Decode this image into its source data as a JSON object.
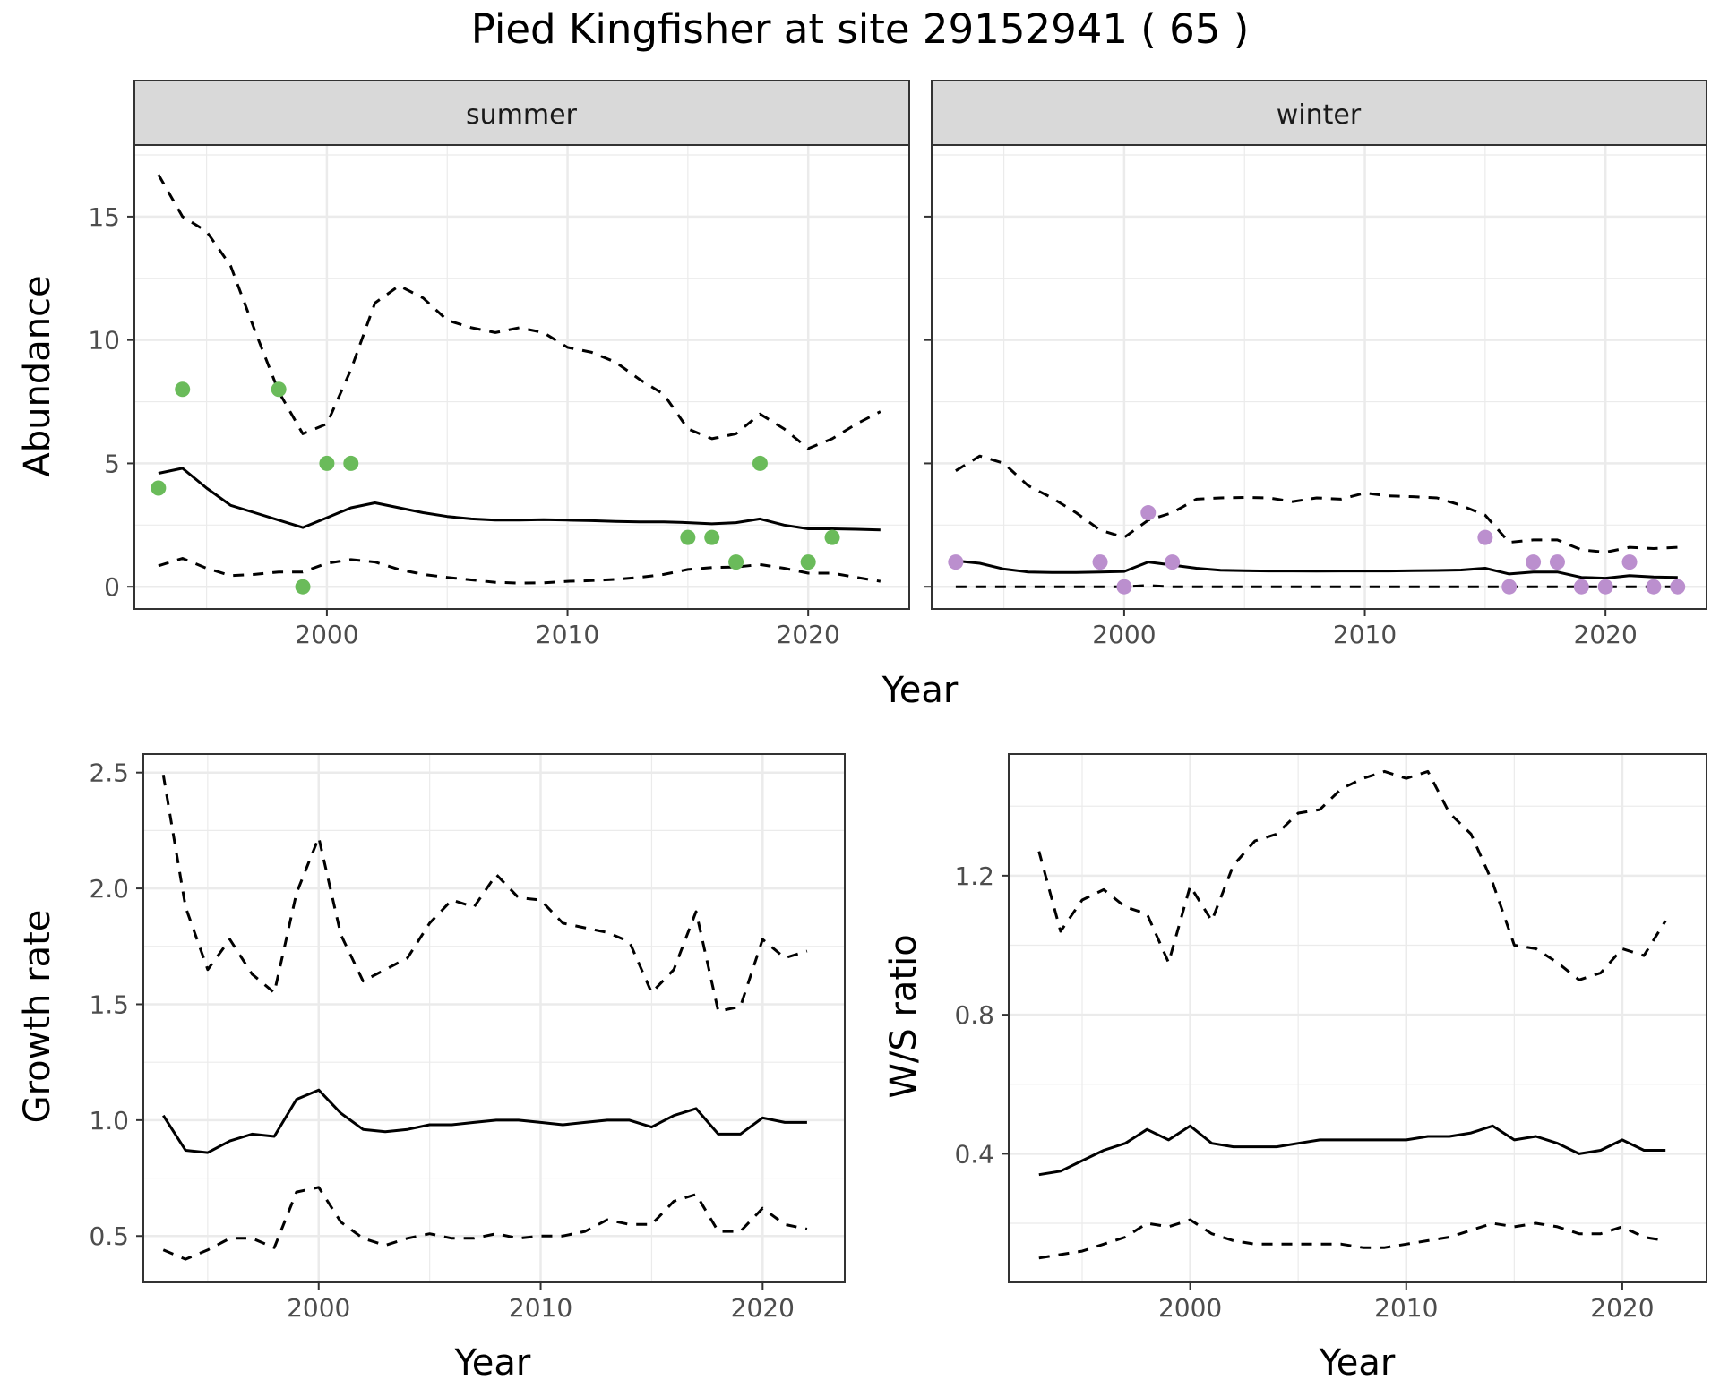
{
  "title": "Pied Kingfisher at site 29152941 ( 65 )",
  "colors": {
    "summer_points": "#6abb5a",
    "winter_points": "#bb8fce",
    "line": "#000000",
    "strip_fill": "#d9d9d9",
    "grid_major": "#ebebeb",
    "panel_border": "#333333"
  },
  "chart_data": [
    {
      "type": "line",
      "facet": "summer",
      "xlabel": "Year",
      "ylabel": "Abundance",
      "xlim": [
        1992,
        2024.2
      ],
      "ylim": [
        -0.9,
        17.9
      ],
      "xticks": [
        2000,
        2010,
        2020
      ],
      "yticks": [
        0,
        5,
        10,
        15
      ],
      "grid": true,
      "x": [
        1993,
        1994,
        1995,
        1996,
        1997,
        1998,
        1999,
        2000,
        2001,
        2002,
        2003,
        2004,
        2005,
        2006,
        2007,
        2008,
        2009,
        2010,
        2011,
        2012,
        2013,
        2014,
        2015,
        2016,
        2017,
        2018,
        2019,
        2020,
        2021,
        2022,
        2023
      ],
      "series": [
        {
          "role": "upper",
          "style": "dashed",
          "values": [
            16.7,
            15.0,
            14.4,
            13.0,
            10.4,
            7.9,
            6.2,
            6.6,
            8.8,
            11.5,
            12.2,
            11.7,
            10.8,
            10.5,
            10.3,
            10.5,
            10.3,
            9.7,
            9.5,
            9.1,
            8.4,
            7.8,
            6.4,
            6.0,
            6.2,
            7.0,
            6.4,
            5.6,
            6.0,
            6.6,
            7.1
          ]
        },
        {
          "role": "mean",
          "style": "solid",
          "values": [
            4.6,
            4.8,
            4.0,
            3.3,
            3.0,
            2.7,
            2.4,
            2.8,
            3.2,
            3.4,
            3.2,
            3.0,
            2.85,
            2.75,
            2.7,
            2.7,
            2.72,
            2.7,
            2.68,
            2.65,
            2.63,
            2.63,
            2.6,
            2.55,
            2.6,
            2.75,
            2.5,
            2.35,
            2.35,
            2.33,
            2.3
          ]
        },
        {
          "role": "lower",
          "style": "dashed",
          "values": [
            0.85,
            1.15,
            0.75,
            0.45,
            0.5,
            0.6,
            0.6,
            0.95,
            1.1,
            1.0,
            0.7,
            0.5,
            0.38,
            0.28,
            0.18,
            0.15,
            0.16,
            0.22,
            0.25,
            0.3,
            0.38,
            0.5,
            0.7,
            0.78,
            0.8,
            0.9,
            0.75,
            0.55,
            0.55,
            0.38,
            0.22
          ]
        }
      ],
      "points": [
        {
          "x": 1993,
          "y": 4
        },
        {
          "x": 1994,
          "y": 8
        },
        {
          "x": 1998,
          "y": 8
        },
        {
          "x": 1999,
          "y": 0
        },
        {
          "x": 2000,
          "y": 5
        },
        {
          "x": 2001,
          "y": 5
        },
        {
          "x": 2015,
          "y": 2
        },
        {
          "x": 2016,
          "y": 2
        },
        {
          "x": 2017,
          "y": 1
        },
        {
          "x": 2018,
          "y": 5
        },
        {
          "x": 2020,
          "y": 1
        },
        {
          "x": 2021,
          "y": 2
        }
      ]
    },
    {
      "type": "line",
      "facet": "winter",
      "xlabel": "Year",
      "ylabel": "Abundance",
      "xlim": [
        1992,
        2024.2
      ],
      "ylim": [
        -0.9,
        17.9
      ],
      "xticks": [
        2000,
        2010,
        2020
      ],
      "yticks": [
        0,
        5,
        10,
        15
      ],
      "grid": true,
      "x": [
        1993,
        1994,
        1995,
        1996,
        1997,
        1998,
        1999,
        2000,
        2001,
        2002,
        2003,
        2004,
        2005,
        2006,
        2007,
        2008,
        2009,
        2010,
        2011,
        2012,
        2013,
        2014,
        2015,
        2016,
        2017,
        2018,
        2019,
        2020,
        2021,
        2022,
        2023
      ],
      "series": [
        {
          "role": "upper",
          "style": "dashed",
          "values": [
            4.7,
            5.3,
            5.0,
            4.1,
            3.6,
            3.0,
            2.3,
            2.0,
            2.7,
            3.0,
            3.55,
            3.6,
            3.62,
            3.6,
            3.45,
            3.6,
            3.55,
            3.8,
            3.68,
            3.65,
            3.6,
            3.3,
            2.9,
            1.8,
            1.9,
            1.9,
            1.5,
            1.4,
            1.6,
            1.55,
            1.6
          ]
        },
        {
          "role": "mean",
          "style": "solid",
          "values": [
            1.05,
            0.95,
            0.72,
            0.6,
            0.58,
            0.58,
            0.6,
            0.62,
            1.0,
            0.88,
            0.75,
            0.67,
            0.65,
            0.64,
            0.64,
            0.63,
            0.64,
            0.64,
            0.64,
            0.65,
            0.66,
            0.68,
            0.75,
            0.52,
            0.6,
            0.6,
            0.38,
            0.35,
            0.45,
            0.4,
            0.38
          ]
        },
        {
          "role": "lower",
          "style": "dashed",
          "values": [
            0,
            0,
            0,
            0,
            0,
            0,
            0,
            0,
            0.05,
            0,
            0,
            0,
            0,
            0,
            0,
            0,
            0,
            0,
            0,
            0,
            0,
            0,
            0,
            0,
            0,
            0,
            0,
            0,
            0,
            0,
            0
          ]
        }
      ],
      "points": [
        {
          "x": 1993,
          "y": 1
        },
        {
          "x": 1999,
          "y": 1
        },
        {
          "x": 2000,
          "y": 0
        },
        {
          "x": 2001,
          "y": 3
        },
        {
          "x": 2002,
          "y": 1
        },
        {
          "x": 2015,
          "y": 2
        },
        {
          "x": 2016,
          "y": 0
        },
        {
          "x": 2017,
          "y": 1
        },
        {
          "x": 2018,
          "y": 1
        },
        {
          "x": 2019,
          "y": 0
        },
        {
          "x": 2020,
          "y": 0
        },
        {
          "x": 2021,
          "y": 1
        },
        {
          "x": 2022,
          "y": 0
        },
        {
          "x": 2023,
          "y": 0
        }
      ]
    },
    {
      "type": "line",
      "xlabel": "Year",
      "ylabel": "Growth rate",
      "xlim": [
        1992.1,
        2023.7
      ],
      "ylim": [
        0.3,
        2.58
      ],
      "xticks": [
        2000,
        2010,
        2020
      ],
      "yticks": [
        0.5,
        1.0,
        1.5,
        2.0,
        2.5
      ],
      "ytick_labels": [
        "0.5",
        "1.0",
        "1.5",
        "2.0",
        "2.5"
      ],
      "grid": true,
      "x": [
        1993,
        1994,
        1995,
        1996,
        1997,
        1998,
        1999,
        2000,
        2001,
        2002,
        2003,
        2004,
        2005,
        2006,
        2007,
        2008,
        2009,
        2010,
        2011,
        2012,
        2013,
        2014,
        2015,
        2016,
        2017,
        2018,
        2019,
        2020,
        2021,
        2022
      ],
      "series": [
        {
          "role": "upper",
          "style": "dashed",
          "values": [
            2.49,
            1.92,
            1.65,
            1.78,
            1.63,
            1.55,
            1.98,
            2.22,
            1.8,
            1.6,
            1.65,
            1.7,
            1.85,
            1.95,
            1.92,
            2.06,
            1.96,
            1.95,
            1.85,
            1.83,
            1.81,
            1.77,
            1.55,
            1.65,
            1.9,
            1.47,
            1.49,
            1.78,
            1.7,
            1.73
          ]
        },
        {
          "role": "mean",
          "style": "solid",
          "values": [
            1.02,
            0.87,
            0.86,
            0.91,
            0.94,
            0.93,
            1.09,
            1.13,
            1.03,
            0.96,
            0.95,
            0.96,
            0.98,
            0.98,
            0.99,
            1.0,
            1.0,
            0.99,
            0.98,
            0.99,
            1.0,
            1.0,
            0.97,
            1.02,
            1.05,
            0.94,
            0.94,
            1.01,
            0.99,
            0.99
          ]
        },
        {
          "role": "lower",
          "style": "dashed",
          "values": [
            0.44,
            0.4,
            0.44,
            0.49,
            0.49,
            0.45,
            0.69,
            0.71,
            0.56,
            0.49,
            0.46,
            0.49,
            0.51,
            0.49,
            0.49,
            0.51,
            0.49,
            0.5,
            0.5,
            0.52,
            0.57,
            0.55,
            0.55,
            0.65,
            0.68,
            0.52,
            0.52,
            0.62,
            0.55,
            0.53
          ]
        }
      ]
    },
    {
      "type": "line",
      "xlabel": "Year",
      "ylabel": "W/S ratio",
      "xlim": [
        1991.6,
        2023.9
      ],
      "ylim": [
        0.03,
        1.55
      ],
      "xticks": [
        2000,
        2010,
        2020
      ],
      "yticks": [
        0.4,
        0.8,
        1.2
      ],
      "ytick_labels": [
        "0.4",
        "0.8",
        "1.2"
      ],
      "grid": true,
      "x": [
        1993,
        1994,
        1995,
        1996,
        1997,
        1998,
        1999,
        2000,
        2001,
        2002,
        2003,
        2004,
        2005,
        2006,
        2007,
        2008,
        2009,
        2010,
        2011,
        2012,
        2013,
        2014,
        2015,
        2016,
        2017,
        2018,
        2019,
        2020,
        2021,
        2022
      ],
      "series": [
        {
          "role": "upper",
          "style": "dashed",
          "values": [
            1.27,
            1.04,
            1.13,
            1.16,
            1.11,
            1.09,
            0.95,
            1.17,
            1.07,
            1.23,
            1.3,
            1.32,
            1.38,
            1.39,
            1.45,
            1.48,
            1.5,
            1.48,
            1.5,
            1.38,
            1.32,
            1.18,
            1.0,
            0.99,
            0.95,
            0.9,
            0.92,
            0.99,
            0.97,
            1.07
          ]
        },
        {
          "role": "mean",
          "style": "solid",
          "values": [
            0.34,
            0.35,
            0.38,
            0.41,
            0.43,
            0.47,
            0.44,
            0.48,
            0.43,
            0.42,
            0.42,
            0.42,
            0.43,
            0.44,
            0.44,
            0.44,
            0.44,
            0.44,
            0.45,
            0.45,
            0.46,
            0.48,
            0.44,
            0.45,
            0.43,
            0.4,
            0.41,
            0.44,
            0.41,
            0.41
          ]
        },
        {
          "role": "lower",
          "style": "dashed",
          "values": [
            0.1,
            0.11,
            0.12,
            0.14,
            0.16,
            0.2,
            0.19,
            0.21,
            0.17,
            0.15,
            0.14,
            0.14,
            0.14,
            0.14,
            0.14,
            0.13,
            0.13,
            0.14,
            0.15,
            0.16,
            0.18,
            0.2,
            0.19,
            0.2,
            0.19,
            0.17,
            0.17,
            0.19,
            0.16,
            0.15
          ]
        }
      ]
    }
  ]
}
